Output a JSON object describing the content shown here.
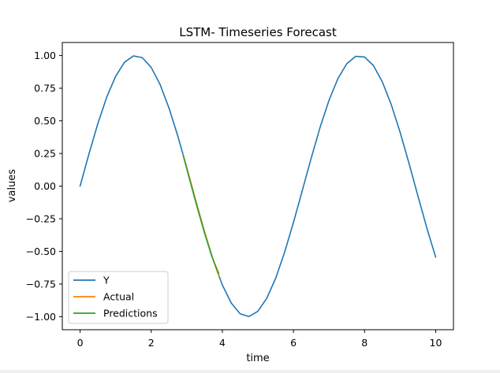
{
  "chart_data": {
    "type": "line",
    "title": "LSTM- Timeseries Forecast",
    "xlabel": "time",
    "ylabel": "values",
    "xlim": [
      -0.5,
      10.5
    ],
    "ylim": [
      -1.1,
      1.1
    ],
    "x_ticks": [
      0,
      2,
      4,
      6,
      8,
      10
    ],
    "y_ticks": [
      1.0,
      0.75,
      0.5,
      0.25,
      0.0,
      -0.25,
      -0.5,
      -0.75,
      -1.0
    ],
    "x_tick_labels": [
      "0",
      "2",
      "4",
      "6",
      "8",
      "10"
    ],
    "y_tick_labels": [
      "1.00",
      "0.75",
      "0.50",
      "0.25",
      "0.00",
      "−0.25",
      "−0.50",
      "−0.75",
      "−1.00"
    ],
    "grid": false,
    "legend_position": "lower-left",
    "series": [
      {
        "name": "Y",
        "color": "#1f77b4",
        "x": [
          0.0,
          0.25,
          0.5,
          0.75,
          1.0,
          1.25,
          1.5,
          1.75,
          2.0,
          2.25,
          2.5,
          2.75,
          3.0,
          3.25,
          3.5,
          3.75,
          4.0,
          4.25,
          4.5,
          4.75,
          5.0,
          5.25,
          5.5,
          5.75,
          6.0,
          6.25,
          6.5,
          6.75,
          7.0,
          7.25,
          7.5,
          7.75,
          8.0,
          8.25,
          8.5,
          8.75,
          9.0,
          9.25,
          9.5,
          9.75,
          10.0
        ],
        "y": [
          0.0,
          0.247,
          0.479,
          0.682,
          0.841,
          0.949,
          0.997,
          0.984,
          0.909,
          0.778,
          0.598,
          0.382,
          0.141,
          -0.108,
          -0.351,
          -0.572,
          -0.757,
          -0.895,
          -0.978,
          -0.999,
          -0.959,
          -0.859,
          -0.706,
          -0.508,
          -0.279,
          -0.033,
          0.215,
          0.451,
          0.657,
          0.823,
          0.938,
          0.994,
          0.989,
          0.923,
          0.798,
          0.625,
          0.412,
          0.174,
          -0.075,
          -0.32,
          -0.544
        ]
      },
      {
        "name": "Actual",
        "color": "#ff7f0e",
        "x": [
          2.9,
          3.1,
          3.3,
          3.5,
          3.7,
          3.9
        ],
        "y": [
          0.239,
          0.042,
          -0.158,
          -0.351,
          -0.53,
          -0.688
        ]
      },
      {
        "name": "Predictions",
        "color": "#2ca02c",
        "x": [
          2.9,
          3.1,
          3.3,
          3.5,
          3.7,
          3.9
        ],
        "y": [
          0.235,
          0.03,
          -0.17,
          -0.36,
          -0.535,
          -0.67
        ]
      }
    ]
  }
}
